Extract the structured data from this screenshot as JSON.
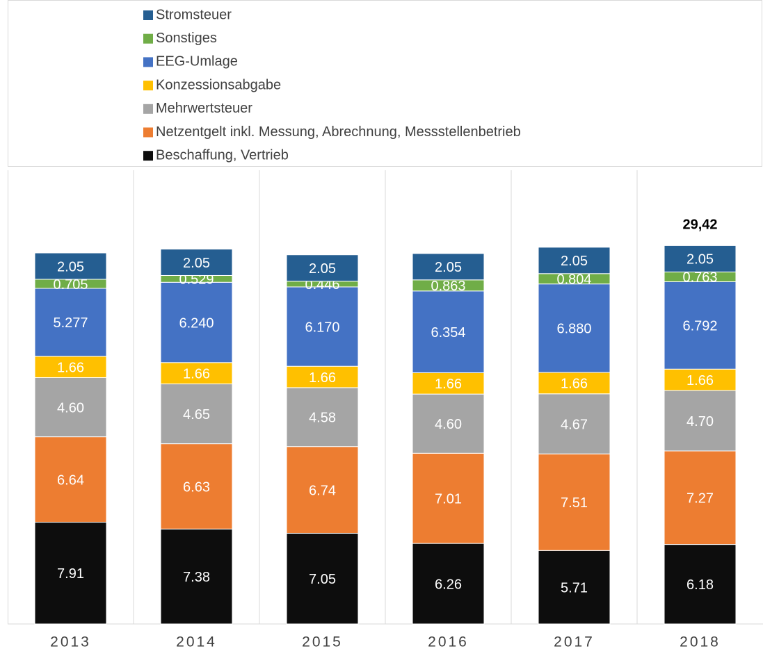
{
  "chart_data": {
    "type": "stacked-bar",
    "categories": [
      "2013",
      "2014",
      "2015",
      "2016",
      "2017",
      "2018"
    ],
    "series": [
      {
        "name": "Beschaffung, Vertrieb",
        "color": "#0d0d0d",
        "values": [
          7.91,
          7.38,
          7.05,
          6.26,
          5.71,
          6.18
        ],
        "value_labels": [
          "7.91",
          "7.38",
          "7.05",
          "6.26",
          "5.71",
          "6.18"
        ]
      },
      {
        "name": "Netzentgelt inkl. Messung, Abrechnung, Messstellenbetrieb",
        "color": "#ed7d31",
        "values": [
          6.64,
          6.63,
          6.74,
          7.01,
          7.51,
          7.27
        ],
        "value_labels": [
          "6.64",
          "6.63",
          "6.74",
          "7.01",
          "7.51",
          "7.27"
        ]
      },
      {
        "name": "Mehrwertsteuer",
        "color": "#a5a5a5",
        "values": [
          4.6,
          4.65,
          4.58,
          4.6,
          4.67,
          4.7
        ],
        "value_labels": [
          "4.60",
          "4.65",
          "4.58",
          "4.60",
          "4.67",
          "4.70"
        ]
      },
      {
        "name": "Konzessionsabgabe",
        "color": "#ffc000",
        "values": [
          1.66,
          1.66,
          1.66,
          1.66,
          1.66,
          1.66
        ],
        "value_labels": [
          "1.66",
          "1.66",
          "1.66",
          "1.66",
          "1.66",
          "1.66"
        ]
      },
      {
        "name": "EEG-Umlage",
        "color": "#4472c4",
        "values": [
          5.277,
          6.24,
          6.17,
          6.354,
          6.88,
          6.792
        ],
        "value_labels": [
          "5.277",
          "6.240",
          "6.170",
          "6.354",
          "6.880",
          "6.792"
        ]
      },
      {
        "name": "Sonstiges",
        "color": "#70ad47",
        "values": [
          0.705,
          0.529,
          0.446,
          0.863,
          0.804,
          0.763
        ],
        "value_labels": [
          "0.705",
          "0.529",
          "0.446",
          "0.863",
          "0.804",
          "0.763"
        ]
      },
      {
        "name": "Stromsteuer",
        "color": "#255e91",
        "values": [
          2.05,
          2.05,
          2.05,
          2.05,
          2.05,
          2.05
        ],
        "value_labels": [
          "2.05",
          "2.05",
          "2.05",
          "2.05",
          "2.05",
          "2.05"
        ]
      }
    ],
    "total_label": "29,42",
    "ylim": [
      0,
      35
    ]
  }
}
